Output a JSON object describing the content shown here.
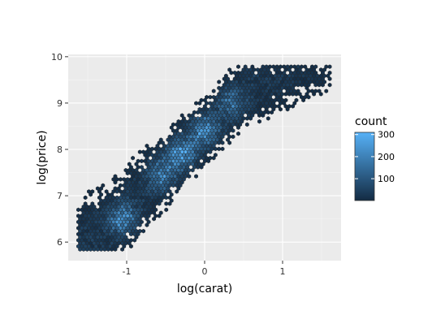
{
  "chart_data": {
    "type": "hexbin",
    "xlabel": "log(carat)",
    "ylabel": "log(price)",
    "xlim": [
      -1.75,
      1.75
    ],
    "ylim": [
      5.6,
      10.05
    ],
    "x_ticks": [
      -1,
      0,
      1
    ],
    "y_ticks": [
      6,
      7,
      8,
      9,
      10
    ],
    "x_tick_labels": [
      "-1",
      "0",
      "1"
    ],
    "y_tick_labels": [
      "6",
      "7",
      "8",
      "9",
      "10"
    ],
    "grid": true,
    "legend": {
      "title": "count",
      "placement": "right",
      "min": 1,
      "max": 310,
      "ticks": [
        100,
        200,
        300
      ],
      "tick_labels": [
        "100",
        "200",
        "300"
      ],
      "color_low": "#132b43",
      "color_high": "#56b1f7"
    },
    "density_ridge": {
      "description_points": [
        {
          "x": -1.6,
          "y": 5.9
        },
        {
          "x": -1.2,
          "y": 6.3
        },
        {
          "x": -1.0,
          "y": 6.7
        },
        {
          "x": -0.6,
          "y": 7.4
        },
        {
          "x": -0.3,
          "y": 7.9
        },
        {
          "x": 0.0,
          "y": 8.4
        },
        {
          "x": 0.3,
          "y": 8.9
        },
        {
          "x": 0.7,
          "y": 9.5
        },
        {
          "x": 1.0,
          "y": 9.8
        }
      ],
      "hotspots": [
        {
          "x": -1.05,
          "y": 6.5,
          "count": 250
        },
        {
          "x": -0.55,
          "y": 7.45,
          "count": 220
        },
        {
          "x": -0.3,
          "y": 7.9,
          "count": 300
        },
        {
          "x": 0.0,
          "y": 8.4,
          "count": 280
        },
        {
          "x": 0.35,
          "y": 9.0,
          "count": 180
        }
      ]
    },
    "colors": {
      "panel_background": "#ebebeb",
      "grid_major": "#ffffff",
      "hex_outline": "#222222"
    }
  }
}
